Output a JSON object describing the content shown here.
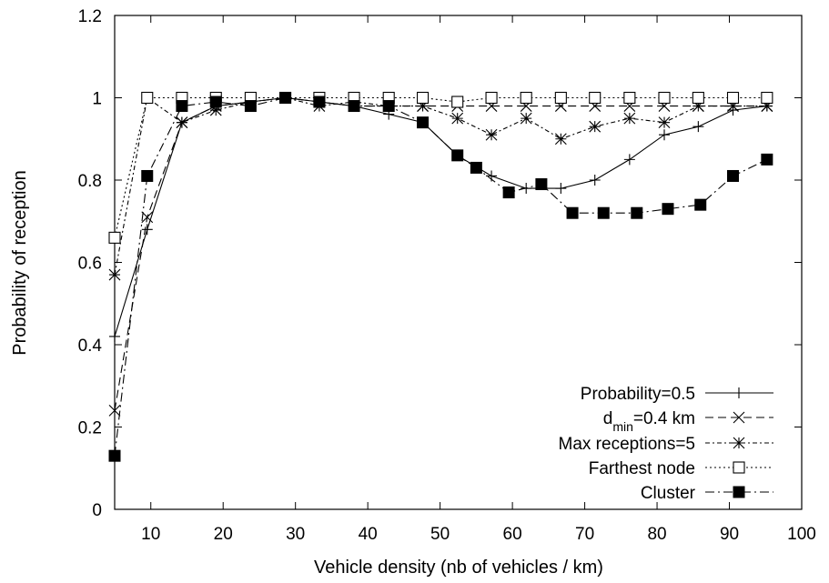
{
  "chart_data": {
    "type": "line",
    "xlabel": "Vehicle density (nb of vehicles / km)",
    "ylabel": "Probability of reception",
    "xlim": [
      5,
      100
    ],
    "ylim": [
      0,
      1.2
    ],
    "x_ticks": [
      10,
      20,
      30,
      40,
      50,
      60,
      70,
      80,
      90,
      100
    ],
    "y_ticks": [
      0,
      0.2,
      0.4,
      0.6,
      0.8,
      1,
      1.2
    ],
    "x_tick_labels": [
      "10",
      "20",
      "30",
      "40",
      "50",
      "60",
      "70",
      "80",
      "90",
      "100"
    ],
    "y_tick_labels": [
      "0",
      "0.2",
      "0.4",
      "0.6",
      "0.8",
      "1",
      "1.2"
    ],
    "grid": false,
    "legend_position": "bottom-right",
    "series": [
      {
        "name": "Probability=0.5",
        "dash": "solid",
        "marker": "plus",
        "x": [
          5,
          9.5,
          14.3,
          19,
          23.8,
          28.6,
          33.3,
          38.1,
          42.9,
          47.6,
          52.4,
          57.1,
          61.9,
          66.7,
          71.4,
          76.2,
          81,
          85.7,
          90.5,
          95.2
        ],
        "y": [
          0.42,
          0.68,
          0.94,
          0.98,
          0.99,
          1.0,
          0.99,
          0.98,
          0.96,
          0.94,
          0.86,
          0.81,
          0.78,
          0.78,
          0.8,
          0.85,
          0.91,
          0.93,
          0.97,
          0.98
        ]
      },
      {
        "name": "d_min=0.4 km",
        "dash": "dashed",
        "marker": "x",
        "x": [
          5,
          9.5,
          14.3,
          19,
          23.8,
          28.6,
          33.3,
          38.1,
          42.9,
          47.6,
          52.4,
          57.1,
          61.9,
          66.7,
          71.4,
          76.2,
          81,
          85.7,
          90.5,
          95.2
        ],
        "y": [
          0.24,
          0.71,
          0.94,
          0.98,
          0.99,
          1.0,
          0.99,
          0.98,
          0.98,
          0.98,
          0.98,
          0.98,
          0.98,
          0.98,
          0.98,
          0.98,
          0.98,
          0.98,
          0.98,
          0.98
        ]
      },
      {
        "name": "Max receptions=5",
        "dash": "dotted-dash",
        "marker": "star",
        "x": [
          5,
          9.5,
          14.3,
          19,
          23.8,
          28.6,
          33.3,
          38.1,
          42.9,
          47.6,
          52.4,
          57.1,
          61.9,
          66.7,
          71.4,
          76.2,
          81,
          85.7,
          90.5,
          95.2
        ],
        "y": [
          0.57,
          1.0,
          0.94,
          0.97,
          0.99,
          1.0,
          0.98,
          0.99,
          0.98,
          0.98,
          0.95,
          0.91,
          0.95,
          0.9,
          0.93,
          0.95,
          0.94,
          0.98,
          0.98,
          0.98
        ]
      },
      {
        "name": "Farthest node",
        "dash": "dotted",
        "marker": "open-square",
        "x": [
          5,
          9.5,
          14.3,
          19,
          23.8,
          28.6,
          33.3,
          38.1,
          42.9,
          47.6,
          52.4,
          57.1,
          61.9,
          66.7,
          71.4,
          76.2,
          81,
          85.7,
          90.5,
          95.2
        ],
        "y": [
          0.66,
          1.0,
          1.0,
          1.0,
          1.0,
          1.0,
          1.0,
          1.0,
          1.0,
          1.0,
          0.99,
          1.0,
          1.0,
          1.0,
          1.0,
          1.0,
          1.0,
          1.0,
          1.0,
          1.0
        ]
      },
      {
        "name": "Cluster",
        "dash": "dash-dot",
        "marker": "filled-square",
        "x": [
          5,
          9.5,
          14.3,
          19,
          23.8,
          28.6,
          33.3,
          38.1,
          42.9,
          47.6,
          52.4,
          55,
          59.5,
          64,
          68.3,
          72.6,
          77.2,
          81.5,
          86,
          90.5,
          95.2
        ],
        "y": [
          0.13,
          0.81,
          0.98,
          0.99,
          0.98,
          1.0,
          0.99,
          0.98,
          0.98,
          0.94,
          0.86,
          0.83,
          0.77,
          0.79,
          0.72,
          0.72,
          0.72,
          0.73,
          0.74,
          0.81,
          0.85
        ]
      }
    ]
  }
}
